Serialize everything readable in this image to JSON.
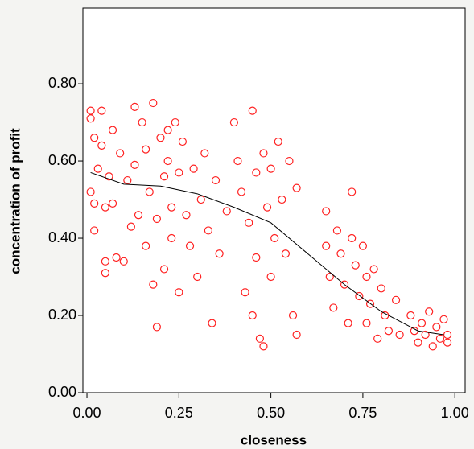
{
  "chart_data": {
    "type": "scatter",
    "x_label": "closeness",
    "y_label": "concentration of profit",
    "xlim": [
      -0.011,
      1.028
    ],
    "ylim": [
      0,
      0.996
    ],
    "xticks": [
      {
        "value": 0,
        "label": "0.00"
      },
      {
        "value": 0.25,
        "label": "0.25"
      },
      {
        "value": 0.5,
        "label": "0.50"
      },
      {
        "value": 0.75,
        "label": "0.75"
      },
      {
        "value": 1,
        "label": "1.00"
      }
    ],
    "yticks": [
      {
        "value": 0,
        "label": "0.00"
      },
      {
        "value": 0.2,
        "label": "0.20"
      },
      {
        "value": 0.4,
        "label": "0.40"
      },
      {
        "value": 0.6,
        "label": "0.60"
      },
      {
        "value": 0.8,
        "label": "0.80"
      }
    ],
    "color": "#ff2020",
    "x": [
      0.01,
      0.01,
      0.02,
      0.01,
      0.02,
      0.02,
      0.03,
      0.04,
      0.04,
      0.05,
      0.05,
      0.05,
      0.06,
      0.07,
      0.07,
      0.08,
      0.09,
      0.1,
      0.11,
      0.12,
      0.13,
      0.13,
      0.14,
      0.15,
      0.16,
      0.16,
      0.17,
      0.18,
      0.18,
      0.19,
      0.19,
      0.2,
      0.21,
      0.21,
      0.22,
      0.22,
      0.23,
      0.23,
      0.24,
      0.25,
      0.25,
      0.26,
      0.27,
      0.28,
      0.29,
      0.3,
      0.31,
      0.32,
      0.33,
      0.34,
      0.35,
      0.36,
      0.38,
      0.4,
      0.41,
      0.42,
      0.43,
      0.44,
      0.45,
      0.45,
      0.46,
      0.46,
      0.47,
      0.48,
      0.48,
      0.49,
      0.5,
      0.5,
      0.51,
      0.52,
      0.53,
      0.54,
      0.55,
      0.56,
      0.57,
      0.57,
      0.65,
      0.65,
      0.66,
      0.67,
      0.68,
      0.69,
      0.7,
      0.71,
      0.72,
      0.72,
      0.73,
      0.74,
      0.75,
      0.76,
      0.76,
      0.77,
      0.78,
      0.79,
      0.8,
      0.81,
      0.82,
      0.84,
      0.85,
      0.88,
      0.89,
      0.9,
      0.91,
      0.92,
      0.93,
      0.94,
      0.95,
      0.96,
      0.97,
      0.98,
      0.98
    ],
    "values": [
      0.73,
      0.71,
      0.66,
      0.52,
      0.49,
      0.42,
      0.58,
      0.73,
      0.64,
      0.48,
      0.34,
      0.31,
      0.56,
      0.68,
      0.49,
      0.35,
      0.62,
      0.34,
      0.55,
      0.43,
      0.74,
      0.59,
      0.46,
      0.7,
      0.63,
      0.38,
      0.52,
      0.75,
      0.28,
      0.17,
      0.45,
      0.66,
      0.56,
      0.32,
      0.68,
      0.6,
      0.48,
      0.4,
      0.7,
      0.57,
      0.26,
      0.65,
      0.46,
      0.38,
      0.58,
      0.3,
      0.5,
      0.62,
      0.42,
      0.18,
      0.55,
      0.36,
      0.47,
      0.7,
      0.6,
      0.52,
      0.26,
      0.44,
      0.73,
      0.2,
      0.57,
      0.35,
      0.14,
      0.62,
      0.12,
      0.48,
      0.58,
      0.3,
      0.4,
      0.65,
      0.5,
      0.36,
      0.6,
      0.2,
      0.53,
      0.15,
      0.47,
      0.38,
      0.3,
      0.22,
      0.42,
      0.36,
      0.28,
      0.18,
      0.52,
      0.4,
      0.33,
      0.25,
      0.38,
      0.3,
      0.18,
      0.23,
      0.32,
      0.14,
      0.27,
      0.2,
      0.16,
      0.24,
      0.15,
      0.2,
      0.16,
      0.13,
      0.18,
      0.15,
      0.21,
      0.12,
      0.17,
      0.14,
      0.19,
      0.15,
      0.13
    ],
    "fit": {
      "color": "#000000",
      "x": [
        0.01,
        0.1,
        0.2,
        0.3,
        0.4,
        0.5,
        0.6,
        0.7,
        0.8,
        0.9,
        0.97
      ],
      "values": [
        0.57,
        0.54,
        0.535,
        0.515,
        0.48,
        0.44,
        0.36,
        0.28,
        0.21,
        0.16,
        0.15
      ]
    }
  }
}
